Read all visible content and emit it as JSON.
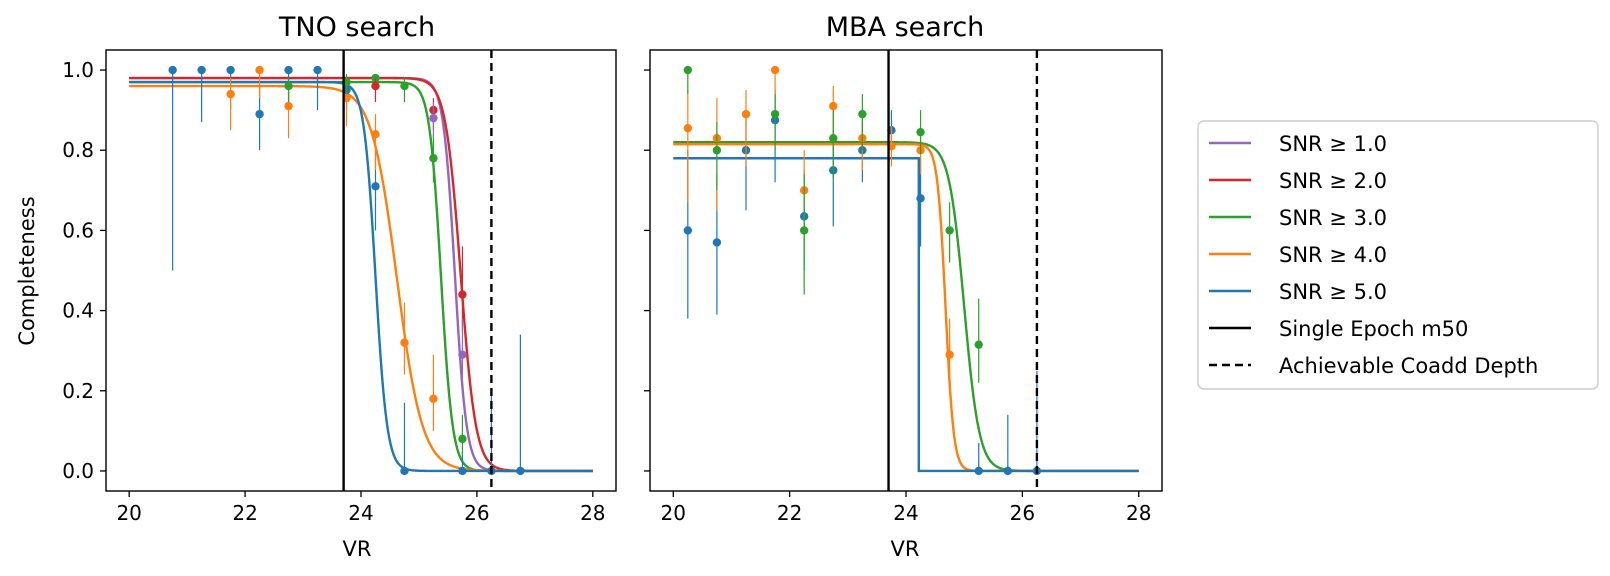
{
  "colors": {
    "snr1": "#9467bd",
    "snr2": "#d62728",
    "snr3": "#2ca02c",
    "snr4": "#ff7f0e",
    "snr5": "#1f77b4",
    "single_epoch": "#000000",
    "coadd": "#000000"
  },
  "legend": {
    "placement": "outside-right",
    "entries": [
      {
        "key": "snr1",
        "label": "SNR ≥ 1.0",
        "style": "solid"
      },
      {
        "key": "snr2",
        "label": "SNR ≥ 2.0",
        "style": "solid"
      },
      {
        "key": "snr3",
        "label": "SNR ≥ 3.0",
        "style": "solid"
      },
      {
        "key": "snr4",
        "label": "SNR ≥ 4.0",
        "style": "solid"
      },
      {
        "key": "snr5",
        "label": "SNR ≥ 5.0",
        "style": "solid"
      },
      {
        "key": "single_epoch",
        "label": "Single Epoch m50",
        "style": "solid"
      },
      {
        "key": "coadd",
        "label": "Achievable Coadd Depth",
        "style": "dashed"
      }
    ]
  },
  "chart_data": [
    {
      "type": "scatter",
      "title": "TNO search",
      "xlabel": "VR",
      "ylabel": "Completeness",
      "xlim": [
        19.6,
        28.4
      ],
      "ylim": [
        -0.05,
        1.05
      ],
      "xticks": [
        20,
        22,
        24,
        26,
        28
      ],
      "yticks": [
        0.0,
        0.2,
        0.4,
        0.6,
        0.8,
        1.0
      ],
      "grid": false,
      "vlines": [
        {
          "x": 23.7,
          "style": "solid",
          "key": "single_epoch"
        },
        {
          "x": 26.25,
          "style": "dashed",
          "key": "coadd"
        }
      ],
      "fits": [
        {
          "key": "snr1",
          "type": "logistic",
          "max": 0.98,
          "m50": 25.62,
          "width": 0.1
        },
        {
          "key": "snr2",
          "type": "logistic",
          "max": 0.98,
          "m50": 25.72,
          "width": 0.13
        },
        {
          "key": "snr3",
          "type": "logistic",
          "max": 0.97,
          "m50": 25.38,
          "width": 0.1
        },
        {
          "key": "snr4",
          "type": "logistic",
          "max": 0.96,
          "m50": 24.62,
          "width": 0.22
        },
        {
          "key": "snr5",
          "type": "logistic",
          "max": 0.97,
          "m50": 24.25,
          "width": 0.1
        }
      ],
      "series": [
        {
          "key": "snr5",
          "points": [
            {
              "x": 20.75,
              "y": 1.0,
              "lo": 0.5,
              "hi": 1.0
            },
            {
              "x": 21.25,
              "y": 1.0,
              "lo": 0.87,
              "hi": 1.0
            },
            {
              "x": 21.75,
              "y": 1.0,
              "lo": 0.9,
              "hi": 1.0
            },
            {
              "x": 22.25,
              "y": 0.89,
              "lo": 0.8,
              "hi": 0.96
            },
            {
              "x": 22.75,
              "y": 1.0,
              "lo": 0.9,
              "hi": 1.0
            },
            {
              "x": 23.25,
              "y": 1.0,
              "lo": 0.9,
              "hi": 1.0
            },
            {
              "x": 23.75,
              "y": 0.95,
              "lo": 0.9,
              "hi": 0.98
            },
            {
              "x": 24.25,
              "y": 0.71,
              "lo": 0.6,
              "hi": 0.8
            },
            {
              "x": 24.75,
              "y": 0.0,
              "lo": 0.0,
              "hi": 0.17
            },
            {
              "x": 25.75,
              "y": 0.0,
              "lo": 0.0,
              "hi": 0.05
            },
            {
              "x": 26.25,
              "y": 0.0,
              "lo": 0.0,
              "hi": 0.2
            },
            {
              "x": 26.75,
              "y": 0.0,
              "lo": 0.0,
              "hi": 0.34
            }
          ]
        },
        {
          "key": "snr4",
          "points": [
            {
              "x": 21.75,
              "y": 0.94,
              "lo": 0.85,
              "hi": 0.98
            },
            {
              "x": 22.25,
              "y": 1.0,
              "lo": 0.93,
              "hi": 1.0
            },
            {
              "x": 22.75,
              "y": 0.91,
              "lo": 0.83,
              "hi": 0.96
            },
            {
              "x": 23.75,
              "y": 0.93,
              "lo": 0.86,
              "hi": 0.97
            },
            {
              "x": 24.25,
              "y": 0.84,
              "lo": 0.75,
              "hi": 0.89
            },
            {
              "x": 24.75,
              "y": 0.32,
              "lo": 0.24,
              "hi": 0.42
            },
            {
              "x": 25.25,
              "y": 0.18,
              "lo": 0.1,
              "hi": 0.29
            }
          ]
        },
        {
          "key": "snr3",
          "points": [
            {
              "x": 22.75,
              "y": 0.96,
              "lo": 0.92,
              "hi": 0.98
            },
            {
              "x": 23.75,
              "y": 0.97,
              "lo": 0.94,
              "hi": 0.99
            },
            {
              "x": 24.25,
              "y": 0.98,
              "lo": 0.95,
              "hi": 0.99
            },
            {
              "x": 24.75,
              "y": 0.96,
              "lo": 0.92,
              "hi": 0.98
            },
            {
              "x": 25.25,
              "y": 0.78,
              "lo": 0.72,
              "hi": 0.84
            },
            {
              "x": 25.75,
              "y": 0.08,
              "lo": 0.04,
              "hi": 0.14
            }
          ]
        },
        {
          "key": "snr2",
          "points": [
            {
              "x": 24.25,
              "y": 0.96,
              "lo": 0.92,
              "hi": 0.98
            },
            {
              "x": 25.25,
              "y": 0.9,
              "lo": 0.85,
              "hi": 0.93
            },
            {
              "x": 25.75,
              "y": 0.44,
              "lo": 0.35,
              "hi": 0.56
            }
          ]
        },
        {
          "key": "snr1",
          "points": [
            {
              "x": 25.25,
              "y": 0.88,
              "lo": 0.83,
              "hi": 0.92
            },
            {
              "x": 25.75,
              "y": 0.29,
              "lo": 0.21,
              "hi": 0.38
            }
          ]
        }
      ]
    },
    {
      "type": "scatter",
      "title": "MBA search",
      "xlabel": "VR",
      "ylabel": "",
      "xlim": [
        19.6,
        28.4
      ],
      "ylim": [
        -0.05,
        1.05
      ],
      "xticks": [
        20,
        22,
        24,
        26,
        28
      ],
      "yticks": [
        0.0,
        0.2,
        0.4,
        0.6,
        0.8,
        1.0
      ],
      "yticklabels_visible": false,
      "grid": false,
      "vlines": [
        {
          "x": 23.7,
          "style": "solid",
          "key": "single_epoch"
        },
        {
          "x": 26.25,
          "style": "dashed",
          "key": "coadd"
        }
      ],
      "fits": [
        {
          "key": "snr3",
          "type": "logistic",
          "max": 0.82,
          "m50": 25.0,
          "width": 0.13
        },
        {
          "key": "snr4",
          "type": "logistic",
          "max": 0.815,
          "m50": 24.68,
          "width": 0.07
        },
        {
          "key": "snr5",
          "type": "step",
          "max": 0.78,
          "m50": 24.22
        }
      ],
      "series": [
        {
          "key": "snr5",
          "points": [
            {
              "x": 20.25,
              "y": 0.6,
              "lo": 0.38,
              "hi": 0.8
            },
            {
              "x": 20.75,
              "y": 0.57,
              "lo": 0.39,
              "hi": 0.74
            },
            {
              "x": 21.25,
              "y": 0.8,
              "lo": 0.65,
              "hi": 0.89
            },
            {
              "x": 21.75,
              "y": 0.875,
              "lo": 0.72,
              "hi": 0.95
            },
            {
              "x": 22.25,
              "y": 0.635,
              "lo": 0.5,
              "hi": 0.75
            },
            {
              "x": 22.75,
              "y": 0.75,
              "lo": 0.61,
              "hi": 0.85
            },
            {
              "x": 23.25,
              "y": 0.8,
              "lo": 0.72,
              "hi": 0.87
            },
            {
              "x": 23.75,
              "y": 0.85,
              "lo": 0.8,
              "hi": 0.9
            },
            {
              "x": 24.25,
              "y": 0.68,
              "lo": 0.56,
              "hi": 0.78
            },
            {
              "x": 25.25,
              "y": 0.0,
              "lo": 0.0,
              "hi": 0.07
            },
            {
              "x": 25.75,
              "y": 0.0,
              "lo": 0.0,
              "hi": 0.14
            },
            {
              "x": 26.25,
              "y": 0.0,
              "lo": 0.0,
              "hi": 0.25
            }
          ]
        },
        {
          "key": "snr4",
          "points": [
            {
              "x": 20.25,
              "y": 0.855,
              "lo": 0.67,
              "hi": 0.95
            },
            {
              "x": 20.75,
              "y": 0.83,
              "lo": 0.65,
              "hi": 0.93
            },
            {
              "x": 21.25,
              "y": 0.89,
              "lo": 0.76,
              "hi": 0.95
            },
            {
              "x": 21.75,
              "y": 1.0,
              "lo": 0.88,
              "hi": 1.0
            },
            {
              "x": 22.25,
              "y": 0.7,
              "lo": 0.57,
              "hi": 0.8
            },
            {
              "x": 22.75,
              "y": 0.91,
              "lo": 0.8,
              "hi": 0.96
            },
            {
              "x": 23.25,
              "y": 0.83,
              "lo": 0.75,
              "hi": 0.9
            },
            {
              "x": 23.75,
              "y": 0.81,
              "lo": 0.76,
              "hi": 0.86
            },
            {
              "x": 24.25,
              "y": 0.8,
              "lo": 0.74,
              "hi": 0.85
            },
            {
              "x": 24.75,
              "y": 0.29,
              "lo": 0.22,
              "hi": 0.38
            }
          ]
        },
        {
          "key": "snr3",
          "points": [
            {
              "x": 20.25,
              "y": 1.0,
              "lo": 0.94,
              "hi": 1.0
            },
            {
              "x": 20.75,
              "y": 0.8,
              "lo": 0.7,
              "hi": 0.87
            },
            {
              "x": 21.75,
              "y": 0.89,
              "lo": 0.8,
              "hi": 0.94
            },
            {
              "x": 22.25,
              "y": 0.6,
              "lo": 0.44,
              "hi": 0.74
            },
            {
              "x": 22.75,
              "y": 0.83,
              "lo": 0.73,
              "hi": 0.9
            },
            {
              "x": 23.25,
              "y": 0.89,
              "lo": 0.8,
              "hi": 0.94
            },
            {
              "x": 24.25,
              "y": 0.845,
              "lo": 0.79,
              "hi": 0.9
            },
            {
              "x": 24.75,
              "y": 0.6,
              "lo": 0.52,
              "hi": 0.67
            },
            {
              "x": 25.25,
              "y": 0.315,
              "lo": 0.22,
              "hi": 0.43
            }
          ]
        }
      ]
    }
  ]
}
